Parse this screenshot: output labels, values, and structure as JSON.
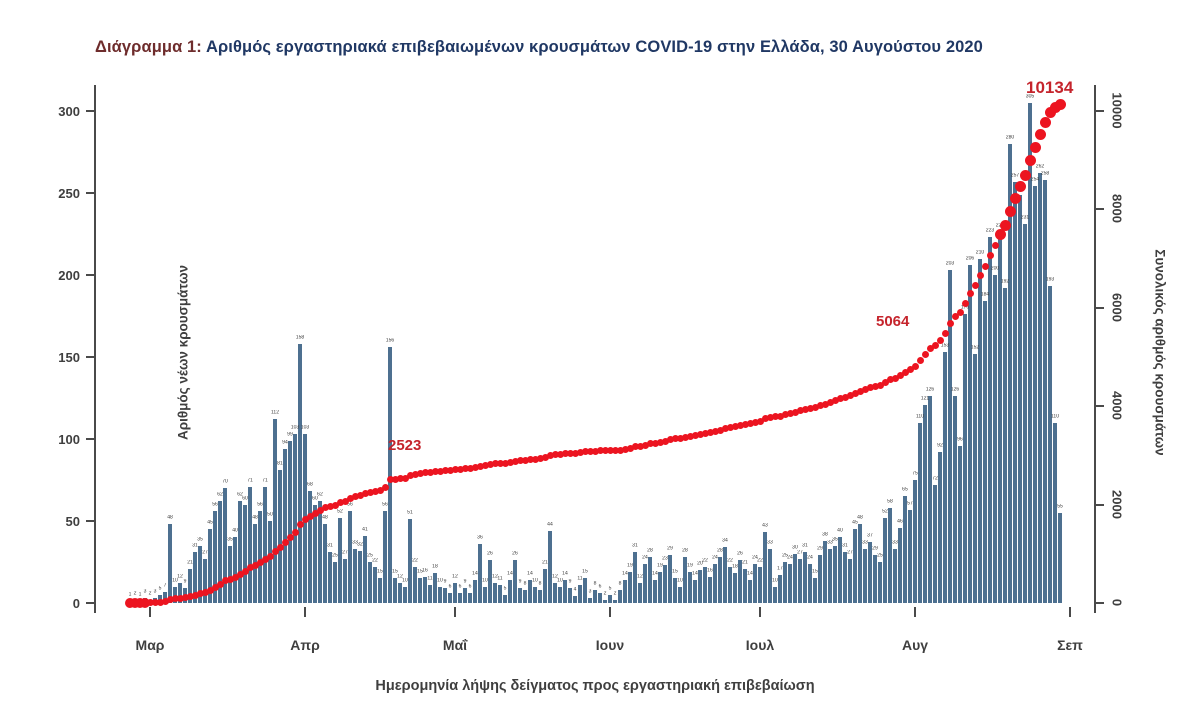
{
  "title": {
    "prefix": "Διάγραμμα 1:",
    "main": " Αριθμός εργαστηριακά επιβεβαιωμένων κρουσμάτων COVID-19 στην Ελλάδα, 30 Αυγούστου 2020"
  },
  "chart_data": {
    "type": "bar",
    "subtype": "daily-bars-with-cumulative-line",
    "start_date_shown": "late February 2020",
    "end_date_shown": "30 August 2020",
    "x_month_labels": [
      "Μαρ",
      "Απρ",
      "Μαΐ",
      "Ιουν",
      "Ιουλ",
      "Αυγ",
      "Σεπ"
    ],
    "month_start_indices": [
      4,
      35,
      65,
      96,
      126,
      157,
      188
    ],
    "xlabel": "Ημερομηνία λήψης δείγματος προς εργαστηριακή επιβεβαίωση",
    "left_axis": {
      "label": "Αριθμός νέων κρουσμάτων",
      "ticks": [
        0,
        50,
        100,
        150,
        200,
        250,
        300
      ],
      "max": 300
    },
    "right_axis": {
      "label": "Συνολικός αριθμός κρουσμάτων",
      "ticks": [
        0,
        2000,
        4000,
        6000,
        8000,
        10000
      ],
      "max": 10000
    },
    "daily_new_cases": [
      1,
      2,
      1,
      3,
      2,
      3,
      5,
      7,
      48,
      10,
      12,
      9,
      21,
      31,
      35,
      27,
      45,
      56,
      62,
      70,
      35,
      40,
      62,
      60,
      71,
      48,
      56,
      71,
      50,
      112,
      81,
      94,
      99,
      103,
      158,
      103,
      68,
      60,
      62,
      48,
      31,
      25,
      52,
      27,
      56,
      33,
      32,
      41,
      25,
      22,
      15,
      56,
      156,
      15,
      12,
      10,
      51,
      22,
      15,
      16,
      11,
      18,
      10,
      9,
      6,
      12,
      6,
      9,
      6,
      14,
      36,
      10,
      26,
      12,
      11,
      5,
      14,
      26,
      9,
      8,
      14,
      10,
      8,
      21,
      44,
      12,
      10,
      14,
      9,
      4,
      11,
      15,
      3,
      8,
      6,
      2,
      5,
      2,
      8,
      14,
      19,
      31,
      12,
      24,
      28,
      14,
      19,
      23,
      29,
      15,
      10,
      28,
      19,
      14,
      20,
      22,
      16,
      24,
      28,
      34,
      22,
      18,
      26,
      21,
      14,
      24,
      22,
      43,
      33,
      10,
      17,
      25,
      24,
      30,
      27,
      31,
      24,
      15,
      29,
      38,
      33,
      35,
      40,
      31,
      27,
      45,
      48,
      33,
      37,
      29,
      25,
      52,
      58,
      33,
      46,
      65,
      57,
      75,
      110,
      121,
      126,
      72,
      92,
      153,
      203,
      126,
      96,
      176,
      206,
      152,
      210,
      184,
      223,
      200,
      226,
      192,
      280,
      257,
      249,
      231,
      305,
      254,
      262,
      258,
      193,
      110,
      55
    ],
    "cumulative_total_final": 10134,
    "annotations": [
      {
        "text": "2523",
        "day_index": 62
      },
      {
        "text": "5064",
        "day_index": 161
      },
      {
        "text": "10134",
        "day_index": 186
      }
    ],
    "legend": "none",
    "grid": "off",
    "colors": {
      "bar": "#4d7090",
      "cumulative_line": "#ec1420",
      "annotation_text": "#c5242c",
      "title_prefix": "#6e2c2c",
      "title_main": "#203864",
      "axis_text": "#3f3f3f"
    }
  }
}
